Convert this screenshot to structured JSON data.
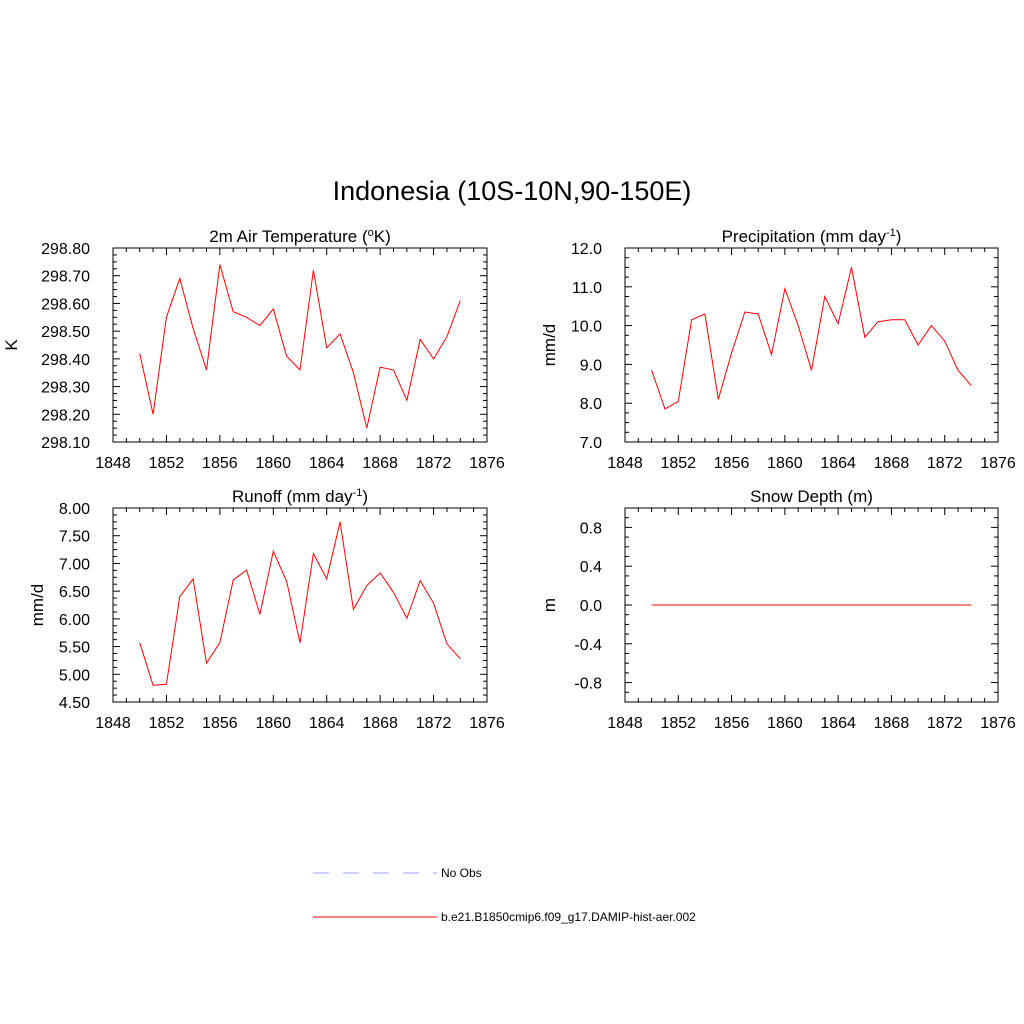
{
  "figure": {
    "title": "Indonesia (10S-10N,90-150E)"
  },
  "legend": {
    "items": [
      {
        "label": "No Obs",
        "color": "#9999ff",
        "style": "dashed"
      },
      {
        "label": "b.e21.B1850cmip6.f09_g17.DAMIP-hist-aer.002",
        "color": "#ff0000",
        "style": "solid"
      }
    ]
  },
  "chart_data": [
    {
      "id": "temp",
      "type": "line",
      "title": "2m Air Temperature",
      "title_unit_prefix": "(",
      "title_unit_sup_pre": "o",
      "title_unit_main": "K",
      "title_unit_sup_post": "",
      "title_unit_suffix": ")",
      "xlabel": "",
      "ylabel": "K",
      "xlim": [
        1848,
        1876
      ],
      "ylim": [
        298.1,
        298.8
      ],
      "xticks": [
        "1848",
        "1852",
        "1856",
        "1860",
        "1864",
        "1868",
        "1872",
        "1876"
      ],
      "yticks": [
        "298.10",
        "298.20",
        "298.30",
        "298.40",
        "298.50",
        "298.60",
        "298.70",
        "298.80"
      ],
      "series": [
        {
          "color": "#ff0000",
          "x": [
            1850,
            1851,
            1852,
            1853,
            1854,
            1855,
            1856,
            1857,
            1858,
            1859,
            1860,
            1861,
            1862,
            1863,
            1864,
            1865,
            1866,
            1867,
            1868,
            1869,
            1870,
            1871,
            1872,
            1873,
            1874
          ],
          "y": [
            298.42,
            298.2,
            298.55,
            298.69,
            298.51,
            298.36,
            298.74,
            298.57,
            298.55,
            298.52,
            298.58,
            298.41,
            298.36,
            298.72,
            298.44,
            298.49,
            298.35,
            298.15,
            298.37,
            298.36,
            298.25,
            298.47,
            298.4,
            298.48,
            298.61
          ]
        }
      ]
    },
    {
      "id": "precip",
      "type": "line",
      "title": "Precipitation",
      "title_unit_prefix": "(mm day",
      "title_unit_sup_pre": "",
      "title_unit_main": "",
      "title_unit_sup_post": "-1",
      "title_unit_suffix": ")",
      "xlabel": "",
      "ylabel": "mm/d",
      "xlim": [
        1848,
        1876
      ],
      "ylim": [
        7.0,
        12.0
      ],
      "xticks": [
        "1848",
        "1852",
        "1856",
        "1860",
        "1864",
        "1868",
        "1872",
        "1876"
      ],
      "yticks": [
        "7.0",
        "8.0",
        "9.0",
        "10.0",
        "11.0",
        "12.0"
      ],
      "series": [
        {
          "color": "#ff0000",
          "x": [
            1850,
            1851,
            1852,
            1853,
            1854,
            1855,
            1856,
            1857,
            1858,
            1859,
            1860,
            1861,
            1862,
            1863,
            1864,
            1865,
            1866,
            1867,
            1868,
            1869,
            1870,
            1871,
            1872,
            1873,
            1874
          ],
          "y": [
            8.85,
            7.85,
            8.05,
            10.15,
            10.3,
            8.1,
            9.3,
            10.35,
            10.3,
            9.25,
            10.95,
            10.0,
            8.85,
            10.75,
            10.05,
            11.5,
            9.7,
            10.1,
            10.15,
            10.15,
            9.5,
            10.0,
            9.6,
            8.85,
            8.45
          ]
        }
      ]
    },
    {
      "id": "runoff",
      "type": "line",
      "title": "Runoff",
      "title_unit_prefix": "(mm day",
      "title_unit_sup_pre": "",
      "title_unit_main": "",
      "title_unit_sup_post": "-1",
      "title_unit_suffix": ")",
      "xlabel": "",
      "ylabel": "mm/d",
      "xlim": [
        1848,
        1876
      ],
      "ylim": [
        4.5,
        8.0
      ],
      "xticks": [
        "1848",
        "1852",
        "1856",
        "1860",
        "1864",
        "1868",
        "1872",
        "1876"
      ],
      "yticks": [
        "4.50",
        "5.00",
        "5.50",
        "6.00",
        "6.50",
        "7.00",
        "7.50",
        "8.00"
      ],
      "series": [
        {
          "color": "#ff0000",
          "x": [
            1850,
            1851,
            1852,
            1853,
            1854,
            1855,
            1856,
            1857,
            1858,
            1859,
            1860,
            1861,
            1862,
            1863,
            1864,
            1865,
            1866,
            1867,
            1868,
            1869,
            1870,
            1871,
            1872,
            1873,
            1874
          ],
          "y": [
            5.57,
            4.8,
            4.82,
            6.4,
            6.72,
            5.2,
            5.57,
            6.7,
            6.88,
            6.08,
            7.22,
            6.68,
            5.57,
            7.18,
            6.72,
            7.75,
            6.17,
            6.6,
            6.83,
            6.48,
            6.01,
            6.69,
            6.28,
            5.55,
            5.28
          ]
        }
      ]
    },
    {
      "id": "snow",
      "type": "line",
      "title": "Snow Depth",
      "title_unit_prefix": "(m)",
      "title_unit_sup_pre": "",
      "title_unit_main": "",
      "title_unit_sup_post": "",
      "title_unit_suffix": "",
      "xlabel": "",
      "ylabel": "m",
      "xlim": [
        1848,
        1876
      ],
      "ylim": [
        -1.0,
        1.0
      ],
      "xticks": [
        "1848",
        "1852",
        "1856",
        "1860",
        "1864",
        "1868",
        "1872",
        "1876"
      ],
      "yticks": [
        "-0.8",
        "-0.4",
        "0.0",
        "0.4",
        "0.8"
      ],
      "series": [
        {
          "color": "#ff0000",
          "x": [
            1850,
            1851,
            1852,
            1853,
            1854,
            1855,
            1856,
            1857,
            1858,
            1859,
            1860,
            1861,
            1862,
            1863,
            1864,
            1865,
            1866,
            1867,
            1868,
            1869,
            1870,
            1871,
            1872,
            1873,
            1874
          ],
          "y": [
            0,
            0,
            0,
            0,
            0,
            0,
            0,
            0,
            0,
            0,
            0,
            0,
            0,
            0,
            0,
            0,
            0,
            0,
            0,
            0,
            0,
            0,
            0,
            0,
            0
          ]
        }
      ]
    }
  ]
}
